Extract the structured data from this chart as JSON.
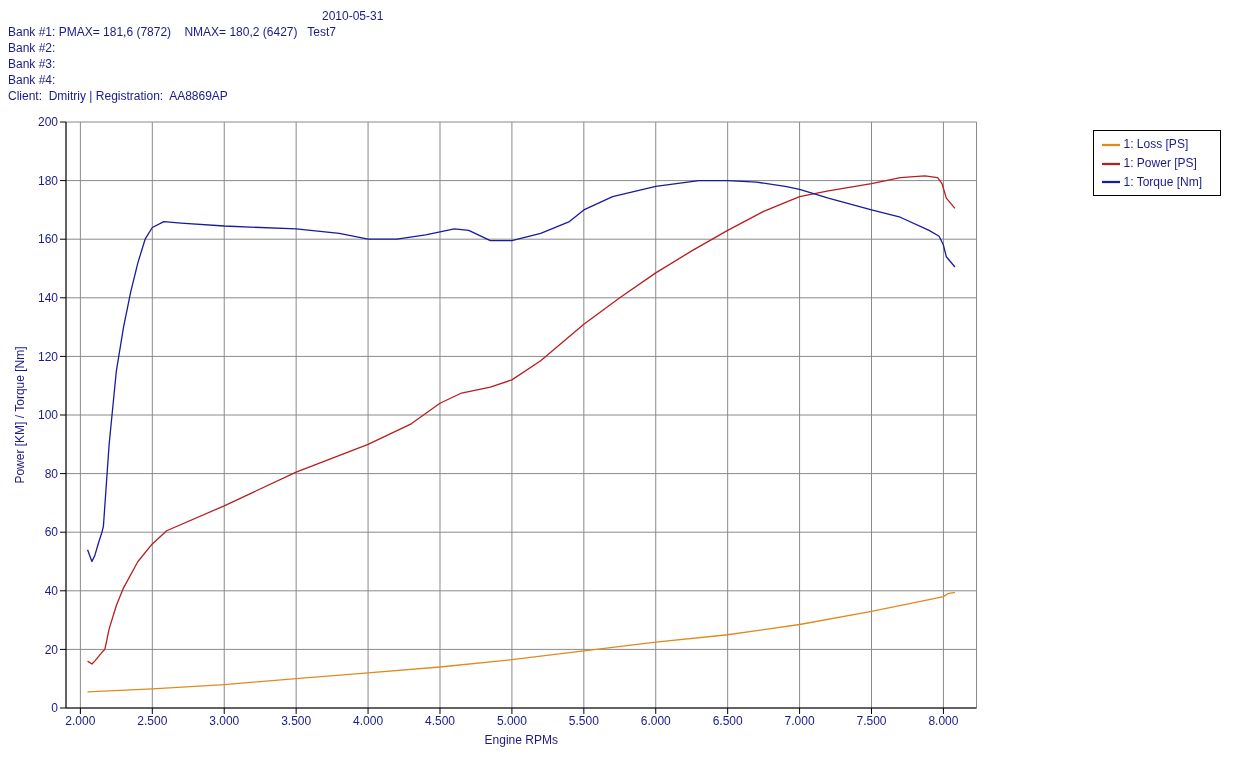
{
  "chart_data": {
    "type": "line",
    "annotations": [
      "2010-05-31",
      "Bank #1: PMAX= 181,6 (7872)    NMAX= 180,2 (6427)   Test7",
      "Bank #2:",
      "Bank #3:",
      "Bank #4:",
      "Client:  Dmitriy | Registration:  AA8869AP"
    ],
    "xlabel": "Engine RPMs",
    "ylabel": "Power [KM] / Torque [Nm]",
    "xlim": [
      1900,
      8230
    ],
    "xticks": [
      {
        "value": 2000,
        "label": "2.000"
      },
      {
        "value": 2500,
        "label": "2.500"
      },
      {
        "value": 3000,
        "label": "3.000"
      },
      {
        "value": 3500,
        "label": "3.500"
      },
      {
        "value": 4000,
        "label": "4.000"
      },
      {
        "value": 4500,
        "label": "4.500"
      },
      {
        "value": 5000,
        "label": "5.000"
      },
      {
        "value": 5500,
        "label": "5.500"
      },
      {
        "value": 6000,
        "label": "6.000"
      },
      {
        "value": 6500,
        "label": "6.500"
      },
      {
        "value": 7000,
        "label": "7.000"
      },
      {
        "value": 7500,
        "label": "7.500"
      },
      {
        "value": 8000,
        "label": "8.000"
      }
    ],
    "ylim": [
      0,
      200
    ],
    "yticks": [
      0,
      20,
      40,
      60,
      80,
      100,
      120,
      140,
      160,
      180,
      200
    ],
    "grid": true,
    "legend": "top right",
    "marker": "none",
    "line_style": "solid",
    "series": [
      {
        "name": "1: Power [PS]",
        "color": "#b81e1e",
        "x": [
          2050,
          2080,
          2100,
          2150,
          2170,
          2200,
          2250,
          2300,
          2400,
          2500,
          2600,
          3000,
          3500,
          4000,
          4300,
          4500,
          4650,
          4850,
          5000,
          5200,
          5500,
          5750,
          6000,
          6250,
          6500,
          6750,
          7000,
          7200,
          7500,
          7700,
          7870,
          7960,
          7990,
          8020,
          8080
        ],
        "values": [
          16,
          15,
          16,
          19,
          20,
          27,
          35,
          41,
          50,
          56,
          60.5,
          69,
          80.5,
          90,
          97,
          104,
          107.5,
          109.5,
          112,
          118.5,
          131,
          140,
          148.5,
          156,
          163,
          169.5,
          174.5,
          176.5,
          179,
          181,
          181.6,
          181,
          179,
          174,
          170.5
        ]
      },
      {
        "name": "1: Torque [Nm]",
        "color": "#1a1aa0",
        "x": [
          2050,
          2080,
          2100,
          2130,
          2150,
          2160,
          2200,
          2250,
          2300,
          2350,
          2400,
          2450,
          2500,
          2580,
          2700,
          3000,
          3500,
          3800,
          4000,
          4200,
          4400,
          4600,
          4700,
          4850,
          5000,
          5200,
          5400,
          5500,
          5700,
          6000,
          6300,
          6500,
          6700,
          6900,
          7000,
          7200,
          7500,
          7700,
          7900,
          7970,
          8000,
          8020,
          8080
        ],
        "values": [
          54,
          50,
          52,
          57,
          60,
          62,
          90,
          115,
          130,
          142,
          152,
          160,
          164,
          166,
          165.5,
          164.5,
          163.5,
          162,
          160,
          160,
          161.5,
          163.5,
          163,
          159.5,
          159.5,
          162,
          166,
          170,
          174.5,
          178,
          180,
          180,
          179.5,
          178,
          177,
          174,
          170,
          167.5,
          163,
          161,
          158,
          154,
          150.5
        ]
      },
      {
        "name": "1: Loss [PS]",
        "color": "#e08a1e",
        "x": [
          2050,
          2500,
          3000,
          3500,
          4000,
          4500,
          5000,
          5500,
          6000,
          6500,
          7000,
          7500,
          7900,
          8000,
          8030,
          8080
        ],
        "values": [
          5.5,
          6.5,
          8,
          10,
          12,
          14,
          16.5,
          19.5,
          22.5,
          25,
          28.5,
          33,
          37,
          38,
          39,
          39.5
        ]
      }
    ]
  }
}
